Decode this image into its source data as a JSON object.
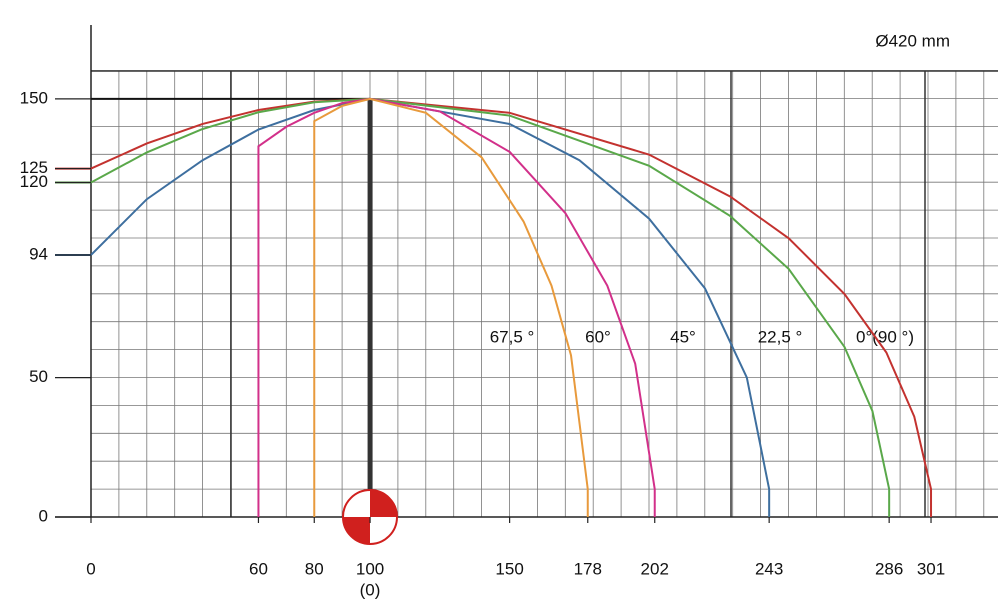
{
  "chart_data": {
    "type": "line",
    "title": "Ø420 mm",
    "xlim": [
      0,
      325
    ],
    "ylim": [
      0,
      160
    ],
    "xticks": [
      0,
      60,
      80,
      100,
      150,
      178,
      202,
      243,
      286,
      301
    ],
    "yticks": [
      0,
      50,
      94,
      120,
      125,
      150
    ],
    "x_note": "(0)",
    "grid": true,
    "annotations": [
      "67,5 °",
      "60°",
      "45°",
      "22,5 °",
      "0°(90 °)"
    ],
    "series": [
      {
        "name": "0°(90 °)",
        "color": "#c3322f",
        "x": [
          0,
          20,
          40,
          60,
          80,
          100,
          150,
          200,
          229,
          250,
          270,
          285,
          295,
          301,
          301
        ],
        "values": [
          125,
          134,
          141,
          146,
          149,
          150,
          145,
          130,
          115,
          100,
          80,
          59,
          36,
          10,
          0
        ]
      },
      {
        "name": "22,5 °",
        "color": "#5aa84a",
        "x": [
          0,
          20,
          40,
          60,
          80,
          100,
          150,
          200,
          229,
          250,
          270,
          280,
          286,
          286
        ],
        "values": [
          120,
          130.8,
          139.2,
          145.2,
          148.8,
          150,
          144,
          126,
          108,
          89,
          61,
          38,
          10,
          0
        ]
      },
      {
        "name": "45°",
        "color": "#3e6f9f",
        "x": [
          0,
          20,
          40,
          60,
          80,
          100,
          150,
          175,
          200,
          220,
          235,
          243,
          243
        ],
        "values": [
          94,
          114,
          128,
          139,
          146,
          150,
          141,
          128,
          107,
          82,
          50,
          10,
          0
        ]
      },
      {
        "name": "60°",
        "color": "#d2308a",
        "x": [
          60,
          60,
          70,
          80,
          90,
          100,
          125,
          150,
          170,
          185,
          195,
          202,
          202
        ],
        "values": [
          0,
          133,
          140,
          145,
          148.5,
          150,
          145.5,
          131,
          109,
          83,
          55,
          10,
          0
        ]
      },
      {
        "name": "67,5 °",
        "color": "#e89a3c",
        "x": [
          80,
          80,
          90,
          100,
          120,
          140,
          155,
          165,
          172,
          178,
          178
        ],
        "values": [
          0,
          142,
          147.5,
          150,
          145,
          129,
          106,
          83,
          58,
          10,
          0
        ]
      }
    ]
  }
}
